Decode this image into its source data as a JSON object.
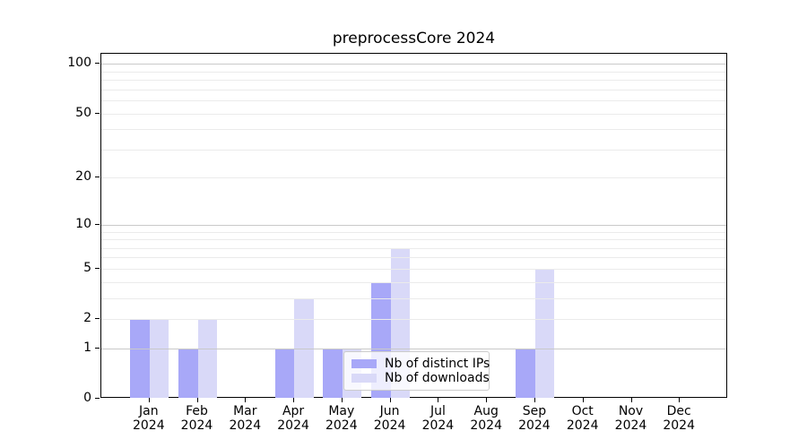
{
  "title": "preprocessCore 2024",
  "chart_data": {
    "type": "bar",
    "title": "preprocessCore 2024",
    "categories": [
      "Jan",
      "Feb",
      "Mar",
      "Apr",
      "May",
      "Jun",
      "Jul",
      "Aug",
      "Sep",
      "Oct",
      "Nov",
      "Dec"
    ],
    "year_label": "2024",
    "series": [
      {
        "name": "Nb of distinct IPs",
        "color": "#a8a8f8",
        "values": [
          2,
          1,
          0,
          1,
          1,
          4,
          0,
          0,
          1,
          0,
          0,
          0
        ]
      },
      {
        "name": "Nb of downloads",
        "color": "#d9d9f8",
        "values": [
          2,
          2,
          0,
          3,
          1,
          7,
          0,
          0,
          5,
          0,
          0,
          0
        ]
      }
    ],
    "y_axis": {
      "scale": "log1p",
      "ylim": [
        0,
        115
      ],
      "ticks": [
        0,
        1,
        2,
        5,
        10,
        20,
        50,
        100
      ],
      "major_gridlines": [
        1,
        10,
        100
      ],
      "minor_gridlines": [
        2,
        3,
        4,
        5,
        6,
        7,
        8,
        9,
        20,
        30,
        40,
        50,
        60,
        70,
        80,
        90
      ]
    },
    "xlabel": "",
    "ylabel": "",
    "grid": true,
    "legend_position": "lower center"
  }
}
